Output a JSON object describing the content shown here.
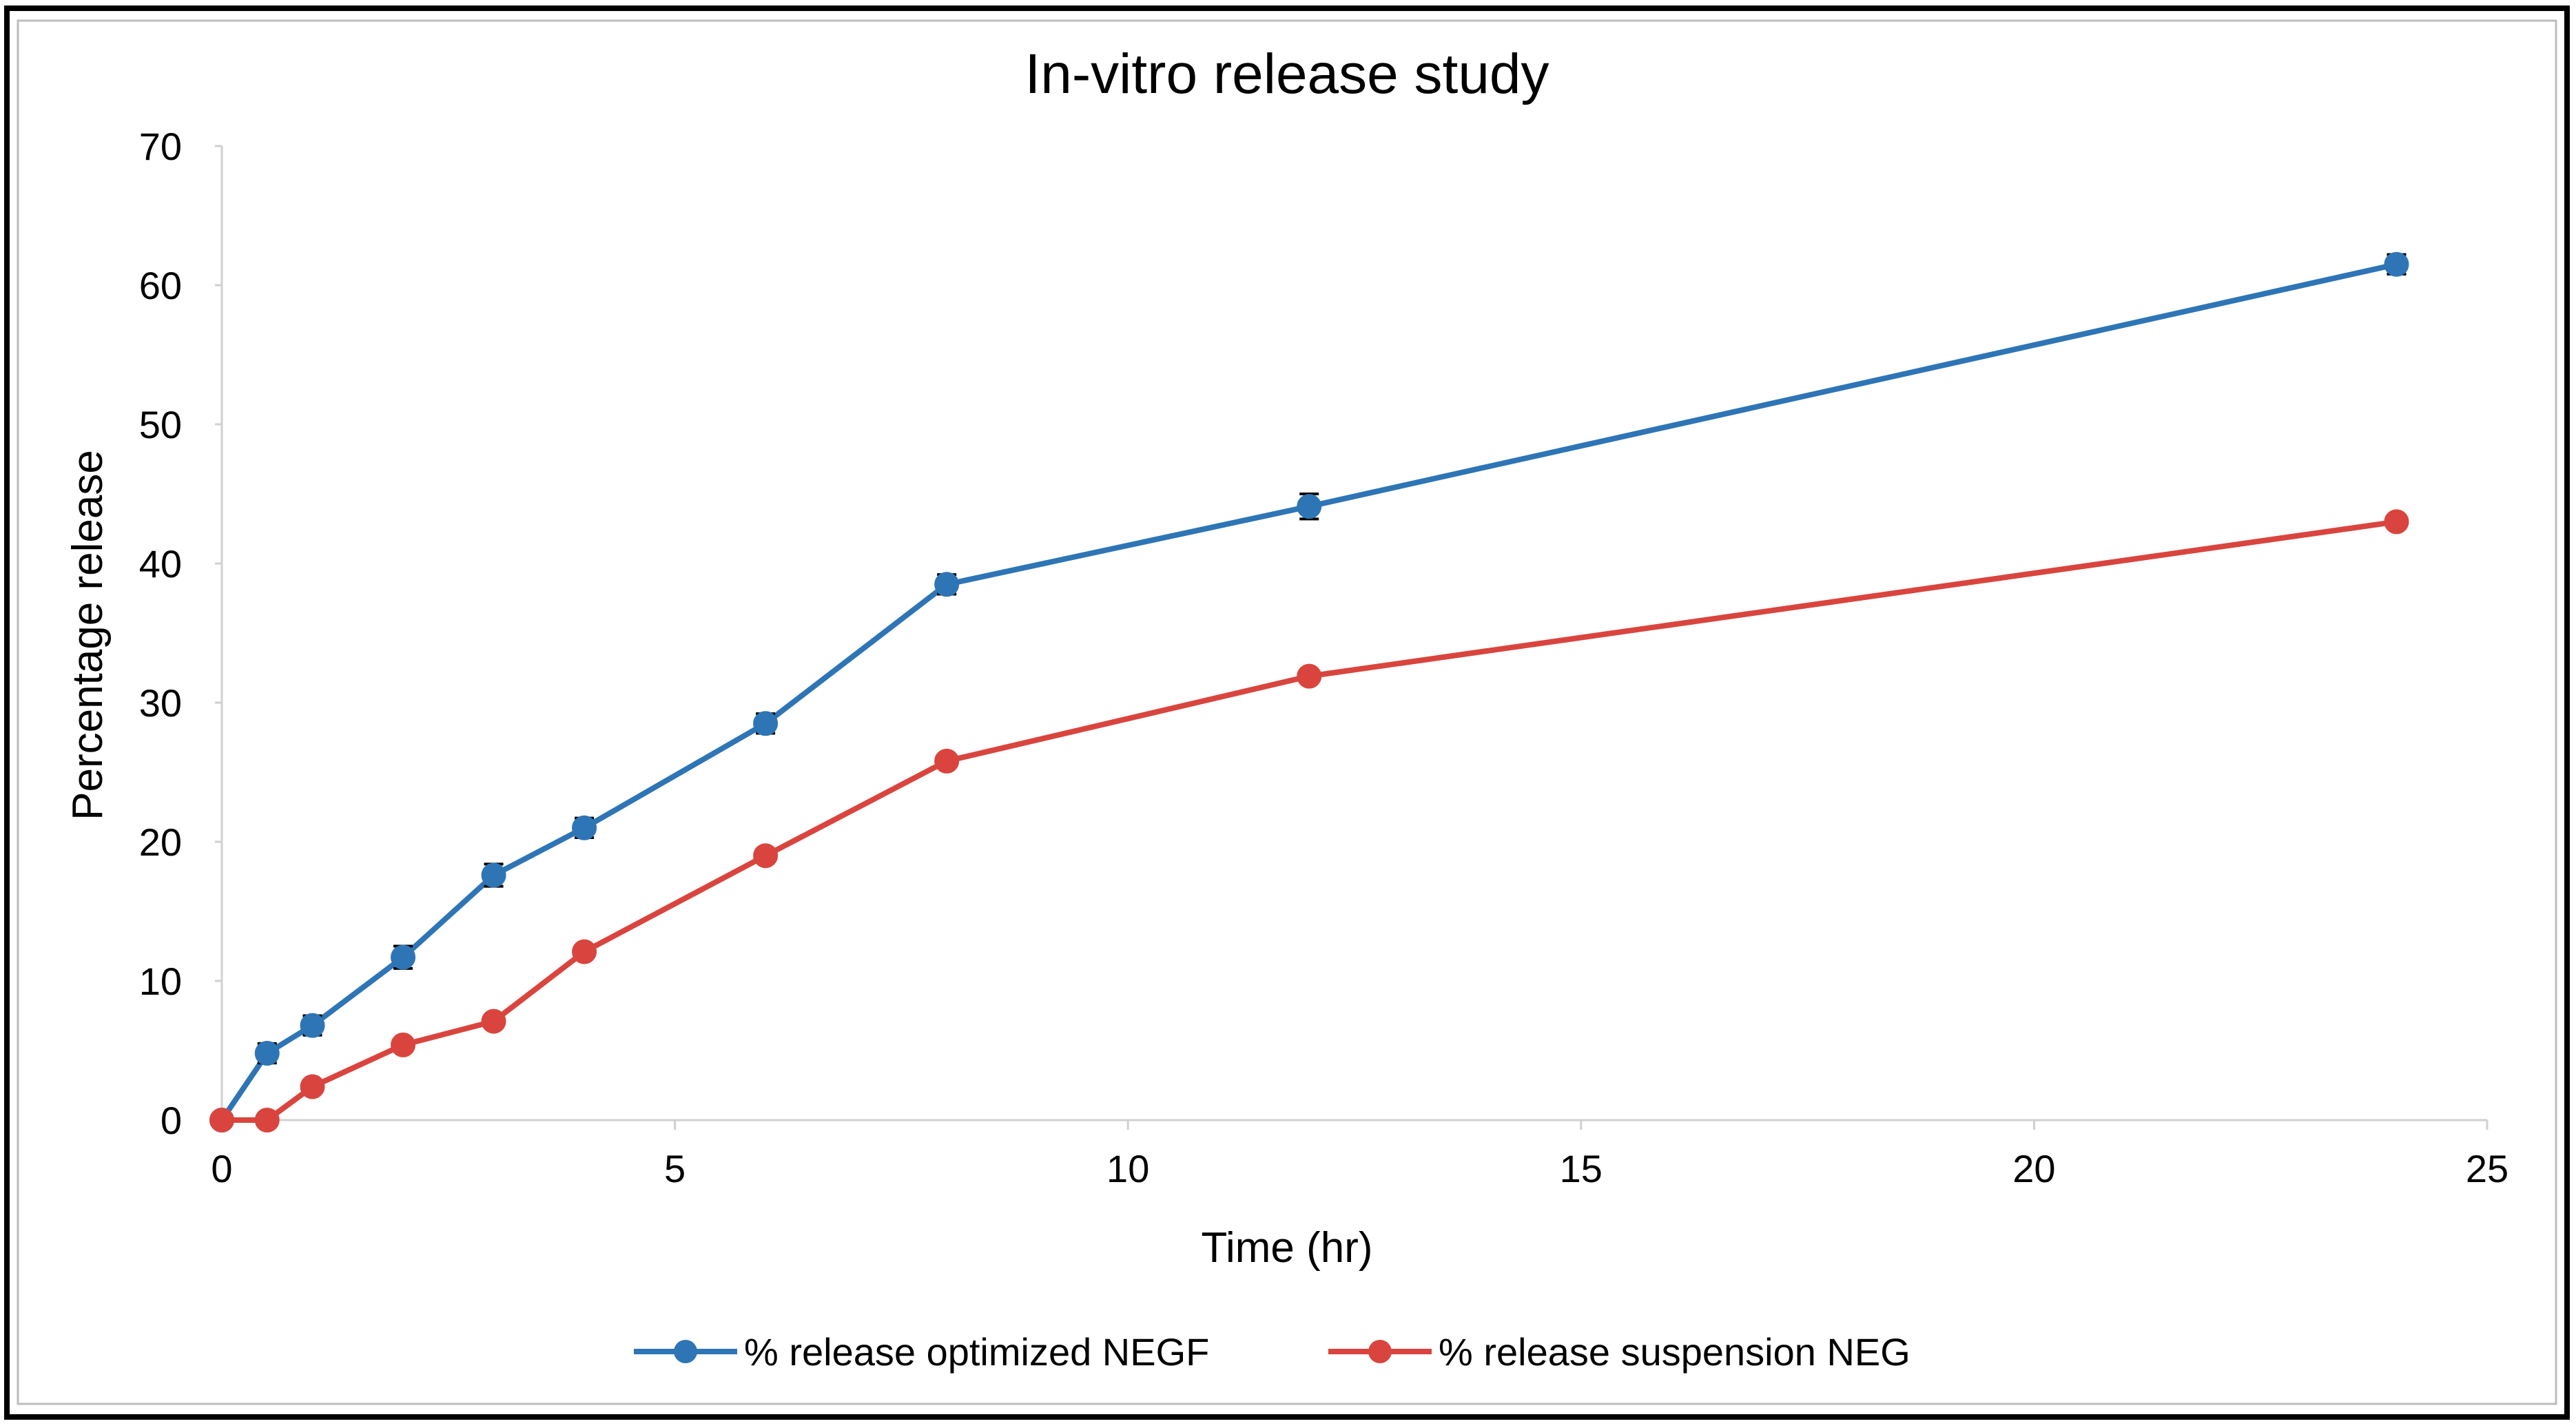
{
  "chart_data": {
    "type": "line",
    "title": "In-vitro release study",
    "xlabel": "Time (hr)",
    "ylabel": "Percentage release",
    "xlim": [
      0,
      25
    ],
    "ylim": [
      0,
      70
    ],
    "xticks": [
      0,
      5,
      10,
      15,
      20,
      25
    ],
    "yticks": [
      0,
      10,
      20,
      30,
      40,
      50,
      60,
      70
    ],
    "grid": false,
    "legend_position": "bottom",
    "series": [
      {
        "name": "% release optimized NEGF",
        "color": "#2E75B6",
        "x": [
          0,
          0.5,
          1,
          2,
          3,
          4,
          6,
          8,
          12,
          24
        ],
        "values": [
          0,
          4.8,
          6.8,
          11.7,
          17.6,
          21.0,
          28.5,
          38.5,
          44.1,
          61.5
        ],
        "error": [
          0.4,
          0.7,
          0.7,
          0.8,
          0.8,
          0.7,
          0.7,
          0.7,
          0.9,
          0.7
        ]
      },
      {
        "name": "% release  suspension NEG",
        "color": "#D9453E",
        "x": [
          0,
          0.5,
          1,
          2,
          3,
          4,
          6,
          8,
          12,
          24
        ],
        "values": [
          0,
          0,
          2.4,
          5.4,
          7.1,
          12.1,
          19.0,
          25.8,
          31.9,
          43.0
        ]
      }
    ]
  }
}
